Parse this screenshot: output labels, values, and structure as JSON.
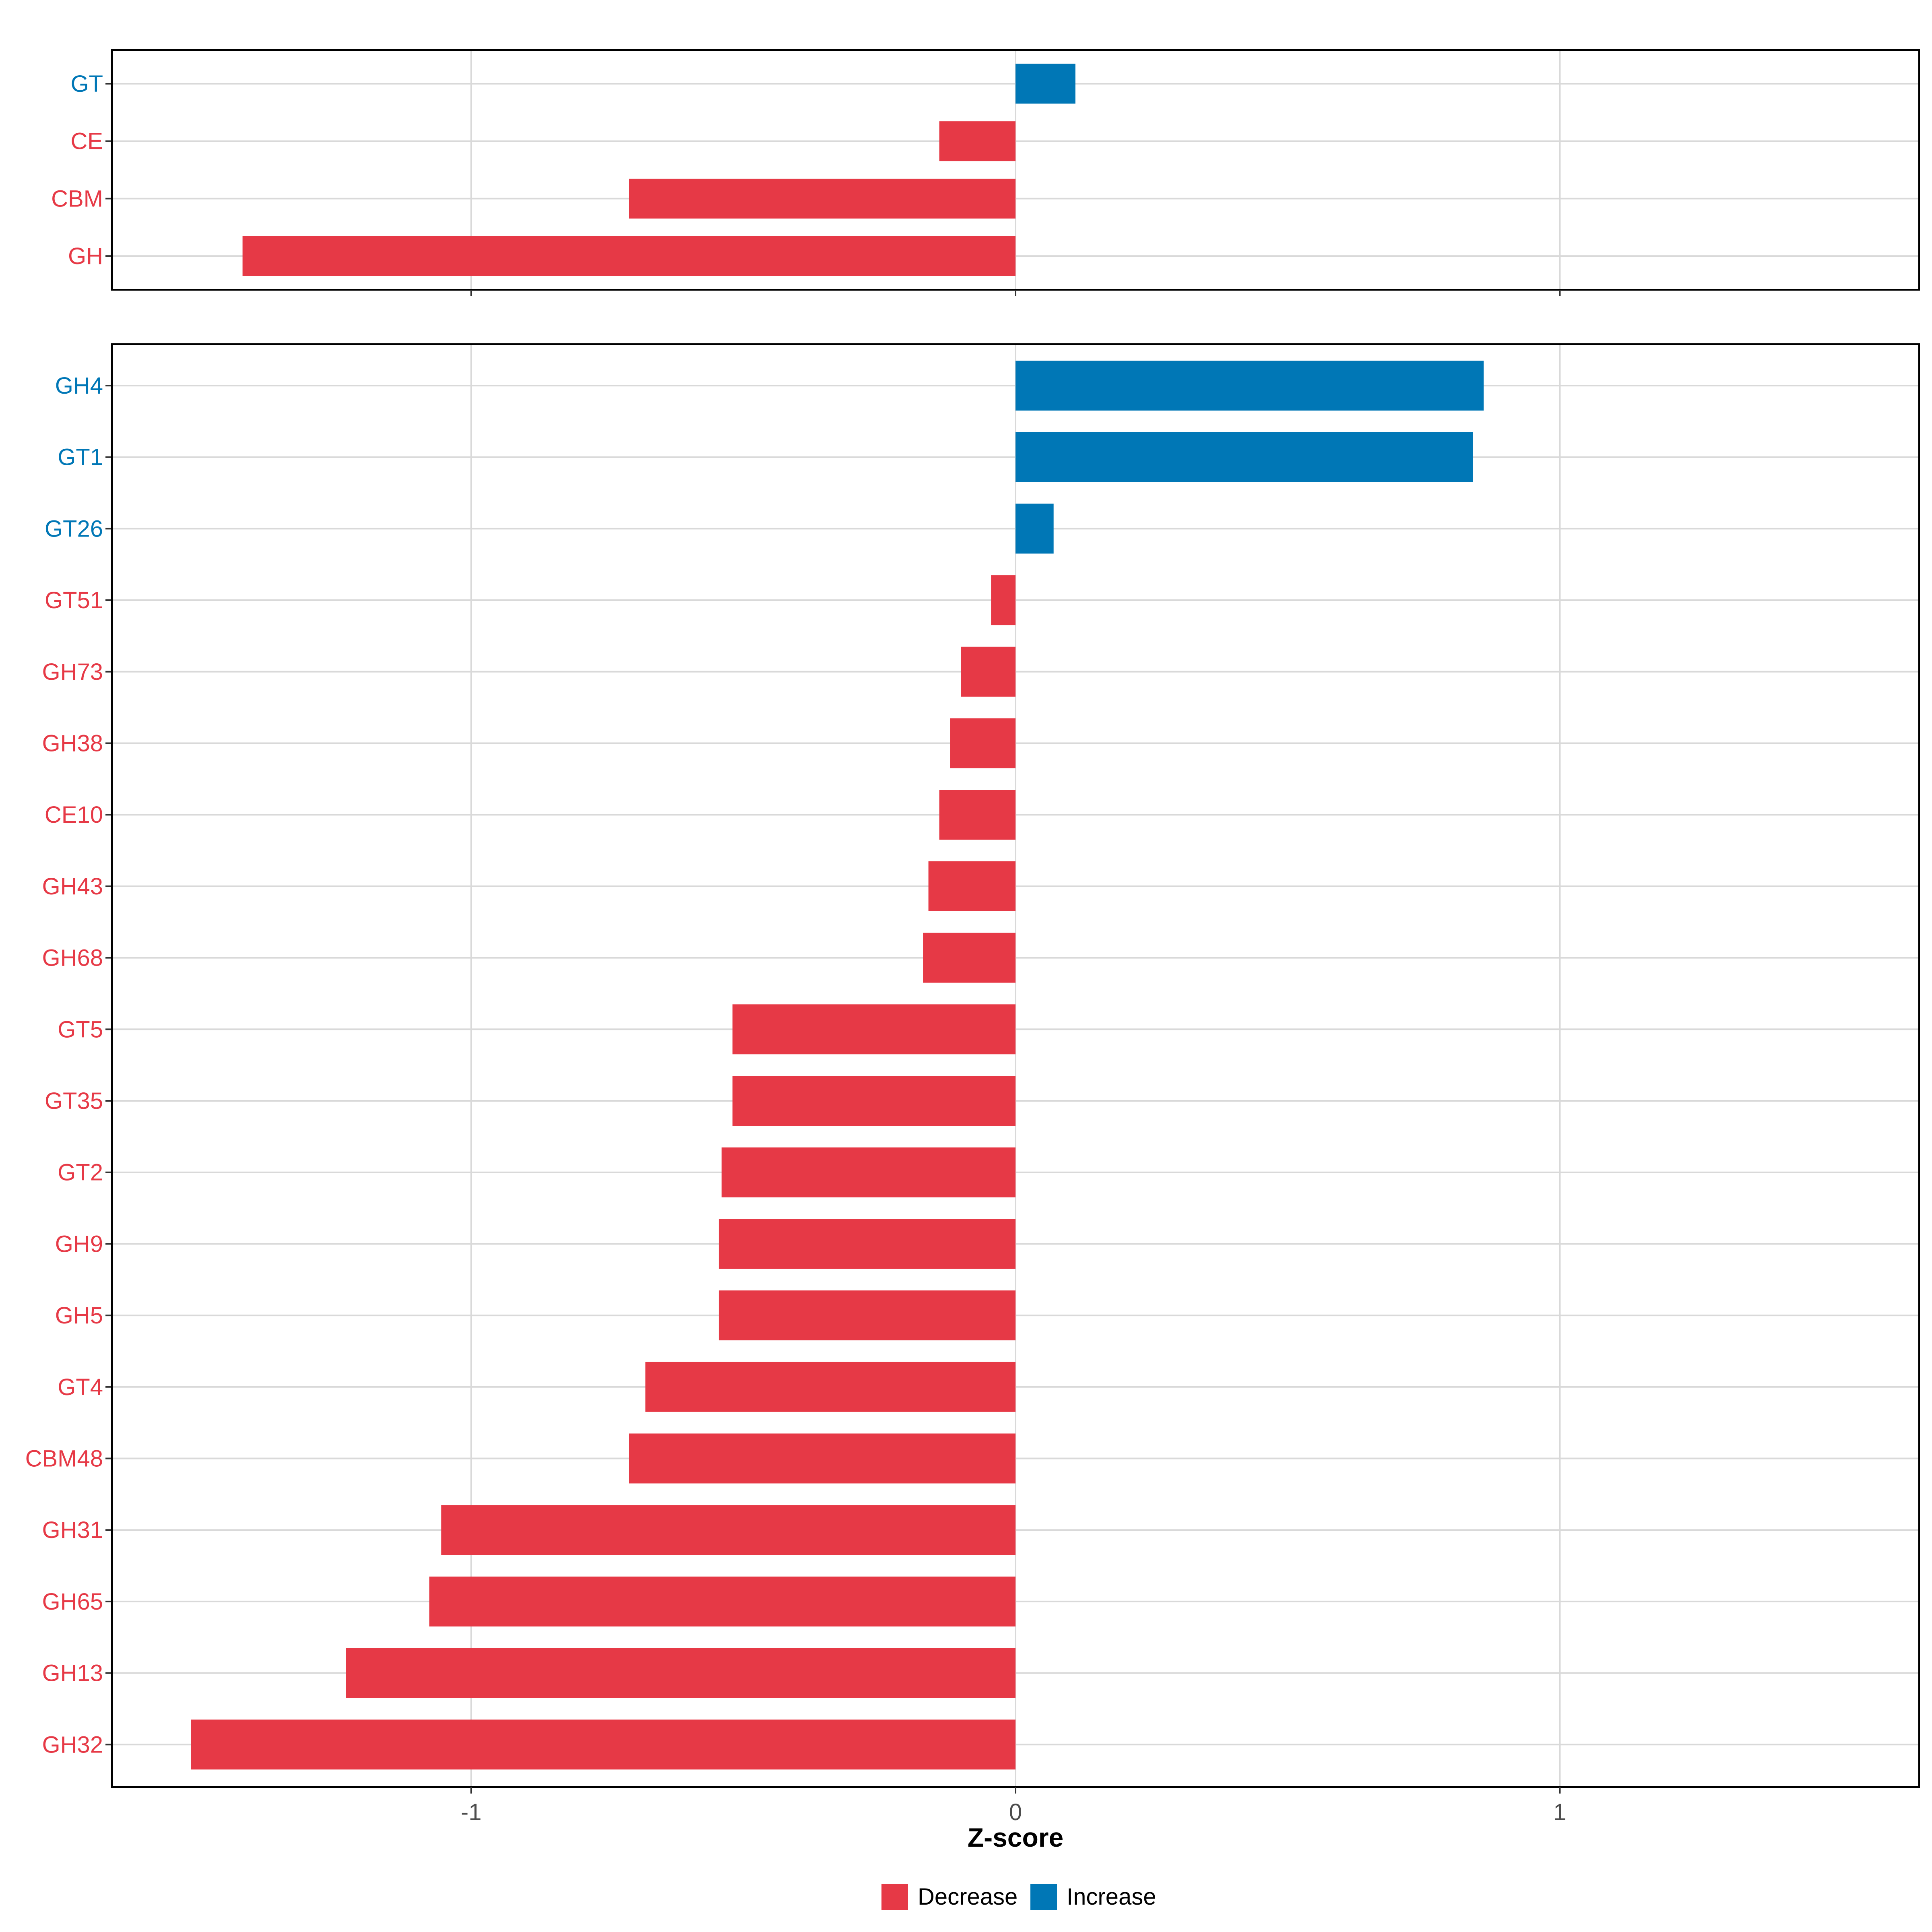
{
  "chart_data": [
    {
      "type": "bar",
      "orientation": "horizontal",
      "panel": "top",
      "categories": [
        "GT",
        "CE",
        "CBM",
        "GH"
      ],
      "values": [
        0.11,
        -0.14,
        -0.71,
        -1.42
      ],
      "xlim": [
        -1.66,
        1.66
      ],
      "grid": true
    },
    {
      "type": "bar",
      "orientation": "horizontal",
      "panel": "bottom",
      "categories": [
        "GH4",
        "GT1",
        "GT26",
        "GT51",
        "GH73",
        "GH38",
        "CE10",
        "GH43",
        "GH68",
        "GT5",
        "GT35",
        "GT2",
        "GH9",
        "GH5",
        "GT4",
        "CBM48",
        "GH31",
        "GH65",
        "GH13",
        "GH32"
      ],
      "values": [
        0.86,
        0.84,
        0.07,
        -0.045,
        -0.1,
        -0.12,
        -0.14,
        -0.16,
        -0.17,
        -0.52,
        -0.52,
        -0.54,
        -0.545,
        -0.545,
        -0.68,
        -0.71,
        -1.055,
        -1.077,
        -1.23,
        -1.515
      ],
      "xlim": [
        -1.66,
        1.66
      ],
      "xticks": [
        -1,
        0,
        1
      ],
      "xtick_labels": [
        "-1",
        "0",
        "1"
      ],
      "xlabel": "Z-score",
      "grid": true
    }
  ],
  "legend": {
    "placement": "bottom",
    "items": [
      {
        "label": "Decrease",
        "color": "#E63946"
      },
      {
        "label": "Increase",
        "color": "#0077B6"
      }
    ]
  },
  "colors": {
    "decrease": "#E63946",
    "increase": "#0077B6",
    "grid": "#D9D9D9",
    "frame": "#000000",
    "tick_text": "#4D4D4D"
  }
}
